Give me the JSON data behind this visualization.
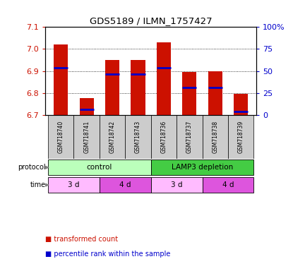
{
  "title": "GDS5189 / ILMN_1757427",
  "samples": [
    "GSM718740",
    "GSM718741",
    "GSM718742",
    "GSM718743",
    "GSM718736",
    "GSM718737",
    "GSM718738",
    "GSM718739"
  ],
  "bar_tops": [
    7.02,
    6.775,
    6.95,
    6.95,
    7.03,
    6.895,
    6.9,
    6.795
  ],
  "bar_bottoms": [
    6.7,
    6.7,
    6.7,
    6.7,
    6.7,
    6.7,
    6.7,
    6.7
  ],
  "percentile_values": [
    6.915,
    6.725,
    6.885,
    6.885,
    6.915,
    6.825,
    6.825,
    6.715
  ],
  "ylim": [
    6.7,
    7.1
  ],
  "yticks_left": [
    6.7,
    6.8,
    6.9,
    7.0,
    7.1
  ],
  "yticks_right": [
    0,
    25,
    50,
    75,
    100
  ],
  "yticks_right_labels": [
    "0",
    "25",
    "50",
    "75",
    "100%"
  ],
  "bar_color": "#cc1100",
  "percentile_color": "#0000cc",
  "protocol_groups": [
    {
      "label": "control",
      "start": 0,
      "end": 4,
      "color": "#bbffbb"
    },
    {
      "label": "LAMP3 depletion",
      "start": 4,
      "end": 8,
      "color": "#44cc44"
    }
  ],
  "time_groups": [
    {
      "label": "3 d",
      "start": 0,
      "end": 2,
      "color": "#ffbbff"
    },
    {
      "label": "4 d",
      "start": 2,
      "end": 4,
      "color": "#dd55dd"
    },
    {
      "label": "3 d",
      "start": 4,
      "end": 6,
      "color": "#ffbbff"
    },
    {
      "label": "4 d",
      "start": 6,
      "end": 8,
      "color": "#dd55dd"
    }
  ],
  "legend_items": [
    {
      "label": "transformed count",
      "color": "#cc1100"
    },
    {
      "label": "percentile rank within the sample",
      "color": "#0000cc"
    }
  ],
  "left_axis_color": "#cc1100",
  "right_axis_color": "#0000cc",
  "sample_label_bg": "#cccccc",
  "fig_width": 4.15,
  "fig_height": 3.84,
  "fig_dpi": 100
}
